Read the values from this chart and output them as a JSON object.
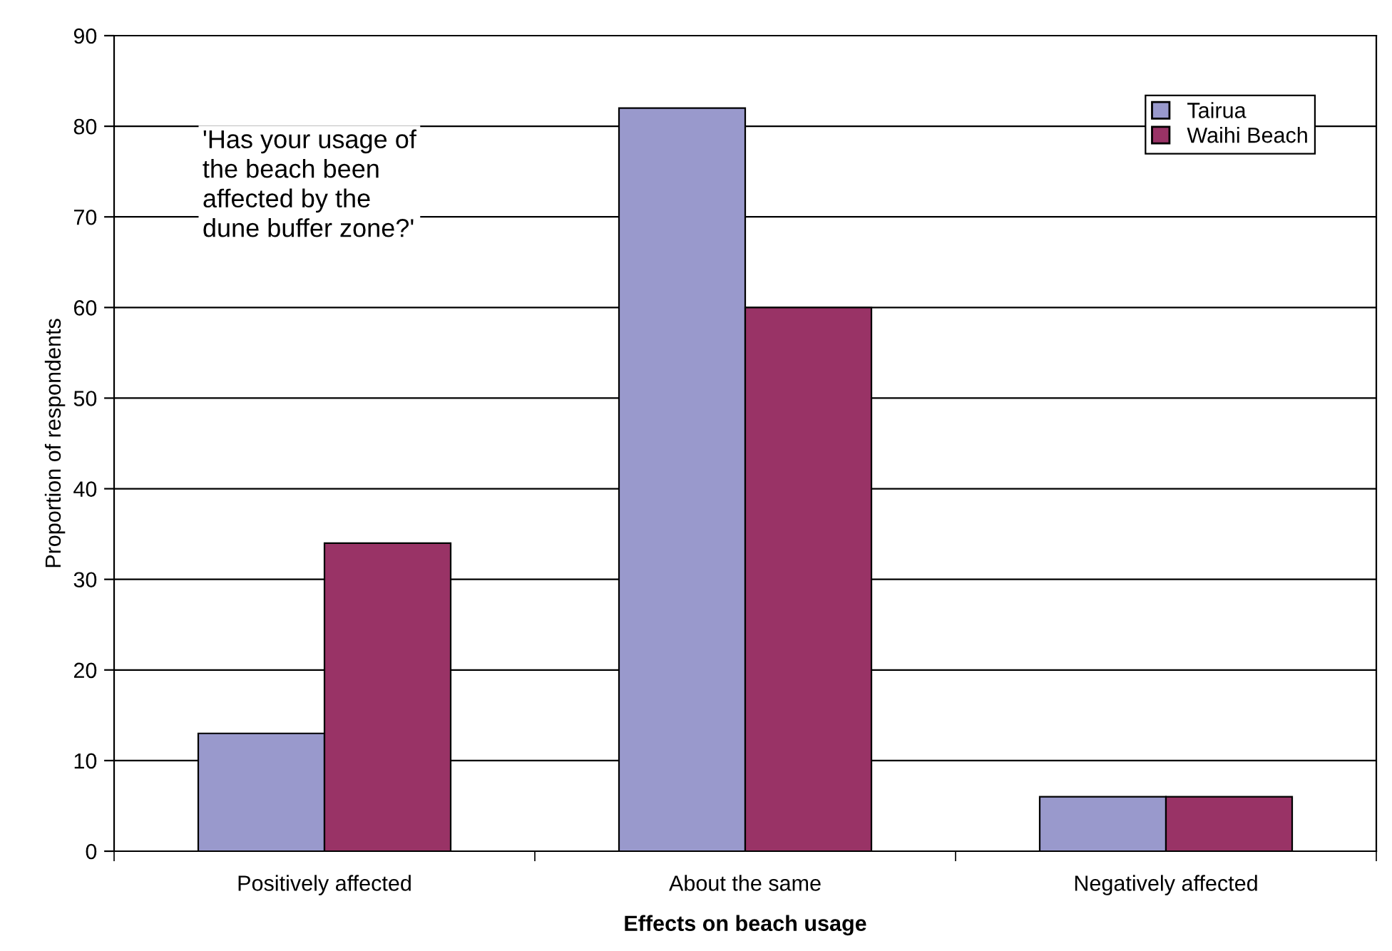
{
  "chart_data": {
    "type": "bar",
    "xlabel": "Effects on beach usage",
    "ylabel": "Proportion of respondents",
    "categories": [
      "Positively affected",
      "About the same",
      "Negatively affected"
    ],
    "series": [
      {
        "name": "Tairua",
        "color": "#9999cc",
        "values": [
          13,
          82,
          6
        ]
      },
      {
        "name": "Waihi Beach",
        "color": "#993366",
        "values": [
          34,
          60,
          6
        ]
      }
    ],
    "ylim": [
      0,
      90
    ],
    "yticks": [
      0,
      10,
      20,
      30,
      40,
      50,
      60,
      70,
      80,
      90
    ],
    "grid": "y",
    "legend": "top right",
    "annotations": [
      "'Has your usage of\nthe beach been\naffected by the\ndune buffer zone?'"
    ]
  }
}
